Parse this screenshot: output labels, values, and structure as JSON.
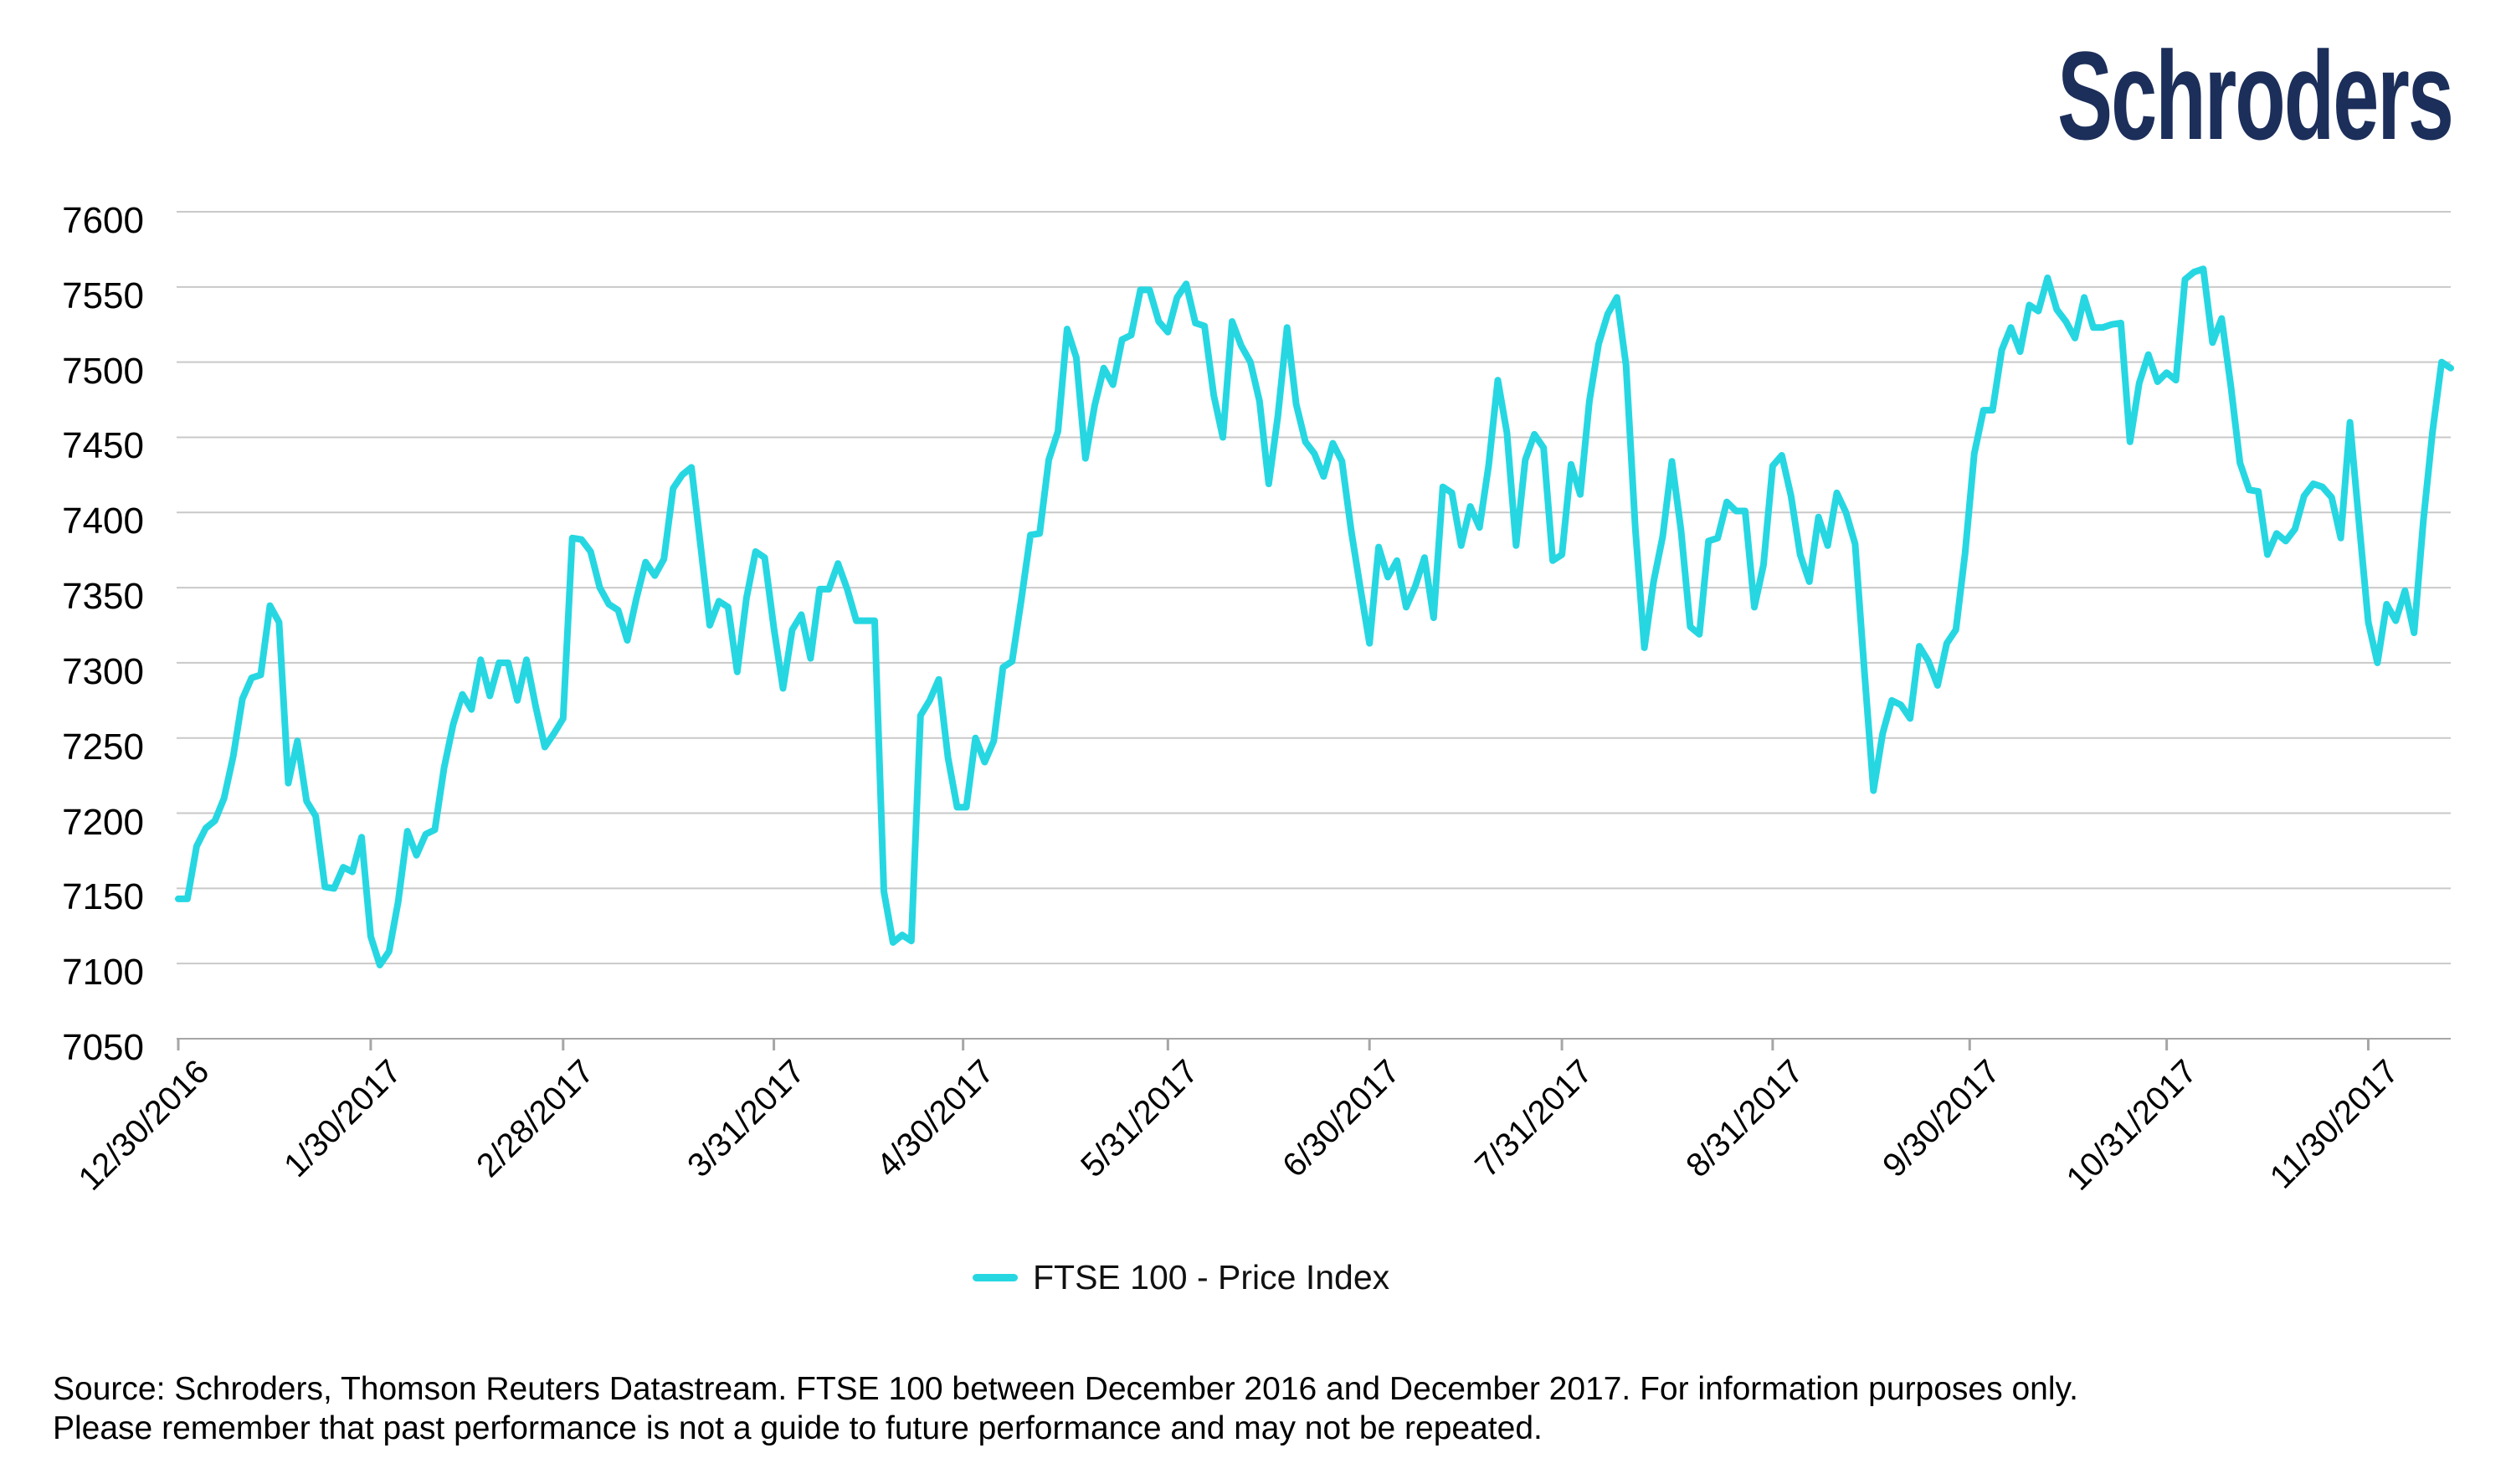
{
  "brand": {
    "logo_text": "Schroders",
    "logo_color": "#1c2e5a"
  },
  "legend": {
    "label": "FTSE 100 - Price Index",
    "swatch_color": "#26d7e2"
  },
  "footer": {
    "line1": "Source: Schroders, Thomson Reuters Datastream. FTSE 100 between December 2016 and December 2017. For information purposes only.",
    "line2": "Please remember that past performance is not a guide to future performance and may not be repeated."
  },
  "chart_data": {
    "type": "line",
    "title": "",
    "xlabel": "",
    "ylabel": "",
    "ylim": [
      7050,
      7600
    ],
    "y_ticks": [
      7050,
      7100,
      7150,
      7200,
      7250,
      7300,
      7350,
      7400,
      7450,
      7500,
      7550,
      7600
    ],
    "grid": "horizontal",
    "grid_color": "#c9c9c9",
    "axis_color": "#a6a6a6",
    "legend_position": "bottom-center",
    "x_tick_labels": [
      "12/30/2016",
      "1/30/2017",
      "2/28/2017",
      "3/31/2017",
      "4/30/2017",
      "5/31/2017",
      "6/30/2017",
      "7/31/2017",
      "8/31/2017",
      "9/30/2017",
      "10/31/2017",
      "11/30/2017"
    ],
    "x_tick_day_index": [
      0,
      21,
      42,
      65,
      85.65,
      108,
      130,
      151,
      174,
      195.5,
      217,
      239
    ],
    "x_range_days": 248,
    "series": [
      {
        "name": "FTSE 100 - Price Index",
        "color": "#26d7e2",
        "line_width": 8,
        "values": [
          7143,
          7143,
          7178,
          7190,
          7195,
          7210,
          7238,
          7276,
          7290,
          7292,
          7338,
          7327,
          7220,
          7248,
          7208,
          7198,
          7151,
          7150,
          7164,
          7161,
          7184,
          7118,
          7099,
          7108,
          7141,
          7188,
          7172,
          7186,
          7189,
          7230,
          7259,
          7279,
          7269,
          7302,
          7278,
          7300,
          7300,
          7275,
          7302,
          7271,
          7244,
          7253,
          7263,
          7383,
          7382,
          7374,
          7350,
          7339,
          7335,
          7315,
          7343,
          7367,
          7358,
          7369,
          7416,
          7425,
          7430,
          7378,
          7325,
          7341,
          7337,
          7294,
          7343,
          7374,
          7370,
          7323,
          7283,
          7322,
          7332,
          7303,
          7349,
          7349,
          7366,
          7349,
          7328,
          7328,
          7328,
          7148,
          7114,
          7119,
          7115,
          7265,
          7275,
          7289,
          7237,
          7204,
          7204,
          7250,
          7234,
          7248,
          7297,
          7301,
          7342,
          7385,
          7386,
          7435,
          7454,
          7522,
          7503,
          7436,
          7471,
          7496,
          7485,
          7515,
          7518,
          7548,
          7548,
          7527,
          7520,
          7543,
          7552,
          7526,
          7524,
          7478,
          7450,
          7527,
          7511,
          7500,
          7474,
          7419,
          7464,
          7523,
          7472,
          7447,
          7439,
          7424,
          7446,
          7434,
          7388,
          7350,
          7313,
          7377,
          7357,
          7368,
          7337,
          7351,
          7370,
          7330,
          7417,
          7413,
          7378,
          7404,
          7390,
          7431,
          7488,
          7453,
          7378,
          7435,
          7452,
          7443,
          7368,
          7372,
          7432,
          7412,
          7474,
          7512,
          7532,
          7543,
          7498,
          7390,
          7310,
          7354,
          7384,
          7434,
          7388,
          7324,
          7319,
          7381,
          7383,
          7407,
          7401,
          7401,
          7337,
          7365,
          7431,
          7438,
          7411,
          7372,
          7354,
          7397,
          7378,
          7413,
          7400,
          7379,
          7295,
          7215,
          7253,
          7275,
          7272,
          7263,
          7311,
          7301,
          7285,
          7313,
          7322,
          7373,
          7439,
          7468,
          7468,
          7508,
          7523,
          7507,
          7538,
          7534,
          7556,
          7535,
          7527,
          7516,
          7543,
          7523,
          7523,
          7525,
          7526,
          7447,
          7486,
          7505,
          7487,
          7493,
          7488,
          7555,
          7560,
          7562,
          7513,
          7529,
          7484,
          7433,
          7415,
          7414,
          7372,
          7386,
          7381,
          7389,
          7411,
          7419,
          7417,
          7410,
          7383,
          7460,
          7393,
          7327,
          7300,
          7339,
          7328,
          7348,
          7320,
          7394,
          7453,
          7500,
          7496
        ]
      }
    ]
  }
}
